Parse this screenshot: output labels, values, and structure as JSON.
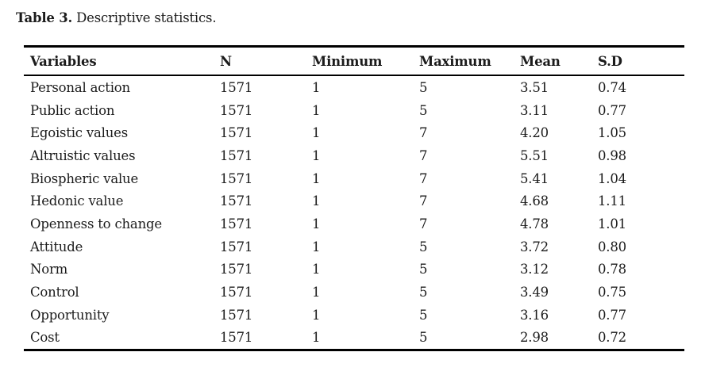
{
  "caption": {
    "number": "Table 3.",
    "text": " Descriptive statistics."
  },
  "table": {
    "columns": [
      "Variables",
      "N",
      "Minimum",
      "Maximum",
      "Mean",
      "S.D"
    ],
    "rows": [
      [
        "Personal action",
        "1571",
        "1",
        "5",
        "3.51",
        "0.74"
      ],
      [
        "Public action",
        "1571",
        "1",
        "5",
        "3.11",
        "0.77"
      ],
      [
        "Egoistic values",
        "1571",
        "1",
        "7",
        "4.20",
        "1.05"
      ],
      [
        "Altruistic values",
        "1571",
        "1",
        "7",
        "5.51",
        "0.98"
      ],
      [
        "Biospheric value",
        "1571",
        "1",
        "7",
        "5.41",
        "1.04"
      ],
      [
        "Hedonic value",
        "1571",
        "1",
        "7",
        "4.68",
        "1.11"
      ],
      [
        "Openness to change",
        "1571",
        "1",
        "7",
        "4.78",
        "1.01"
      ],
      [
        "Attitude",
        "1571",
        "1",
        "5",
        "3.72",
        "0.80"
      ],
      [
        "Norm",
        "1571",
        "1",
        "5",
        "3.12",
        "0.78"
      ],
      [
        "Control",
        "1571",
        "1",
        "5",
        "3.49",
        "0.75"
      ],
      [
        "Opportunity",
        "1571",
        "1",
        "5",
        "3.16",
        "0.77"
      ],
      [
        "Cost",
        "1571",
        "1",
        "5",
        "2.98",
        "0.72"
      ]
    ]
  },
  "colors": {
    "background": "#ffffff",
    "text": "#1b1b1b",
    "rule": "#000000"
  }
}
